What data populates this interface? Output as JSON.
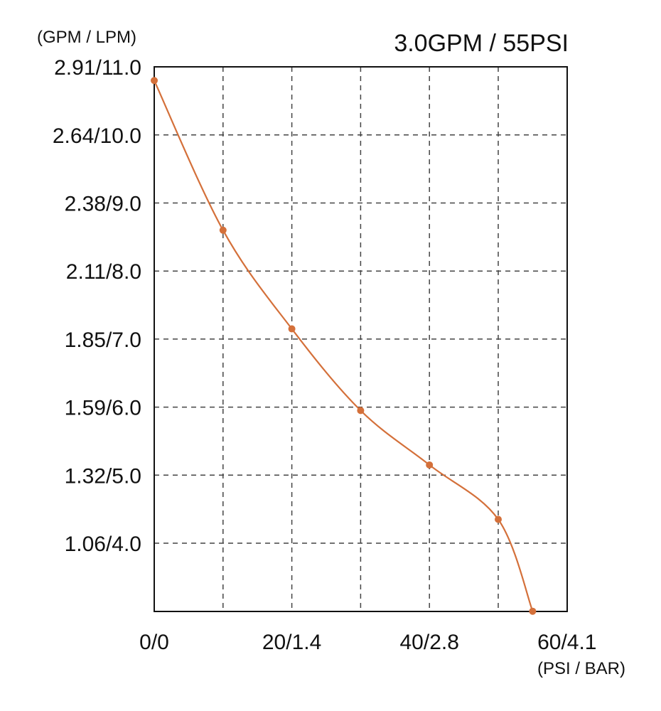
{
  "chart_data": {
    "type": "line",
    "title": "3.0GPM / 55PSI",
    "ylabel": "(GPM / LPM)",
    "xlabel": "(PSI / BAR)",
    "x_tick_labels": [
      {
        "value": 0,
        "label": "0/0"
      },
      {
        "value": 20,
        "label": "20/1.4"
      },
      {
        "value": 40,
        "label": "40/2.8"
      },
      {
        "value": 60,
        "label": "60/4.1"
      }
    ],
    "y_tick_labels": [
      {
        "value": 11.0,
        "label": "2.91/11.0"
      },
      {
        "value": 10.0,
        "label": "2.64/10.0"
      },
      {
        "value": 9.0,
        "label": "2.38/9.0"
      },
      {
        "value": 8.0,
        "label": "2.11/8.0"
      },
      {
        "value": 7.0,
        "label": "1.85/7.0"
      },
      {
        "value": 6.0,
        "label": "1.59/6.0"
      },
      {
        "value": 5.0,
        "label": "1.32/5.0"
      },
      {
        "value": 4.0,
        "label": "1.06/4.0"
      }
    ],
    "xlim": [
      0,
      60
    ],
    "ylim": [
      3.0,
      11.0
    ],
    "x_gridlines": [
      10,
      20,
      30,
      40,
      50
    ],
    "y_gridlines": [
      4,
      5,
      6,
      7,
      8,
      9,
      10
    ],
    "grid": true,
    "grid_style": "dashed",
    "line_color": "#d4703a",
    "series": [
      {
        "x": [
          0,
          10,
          20,
          30,
          40,
          50,
          55
        ],
        "y": [
          10.8,
          8.6,
          7.15,
          5.95,
          5.15,
          4.35,
          3.0
        ]
      }
    ]
  }
}
